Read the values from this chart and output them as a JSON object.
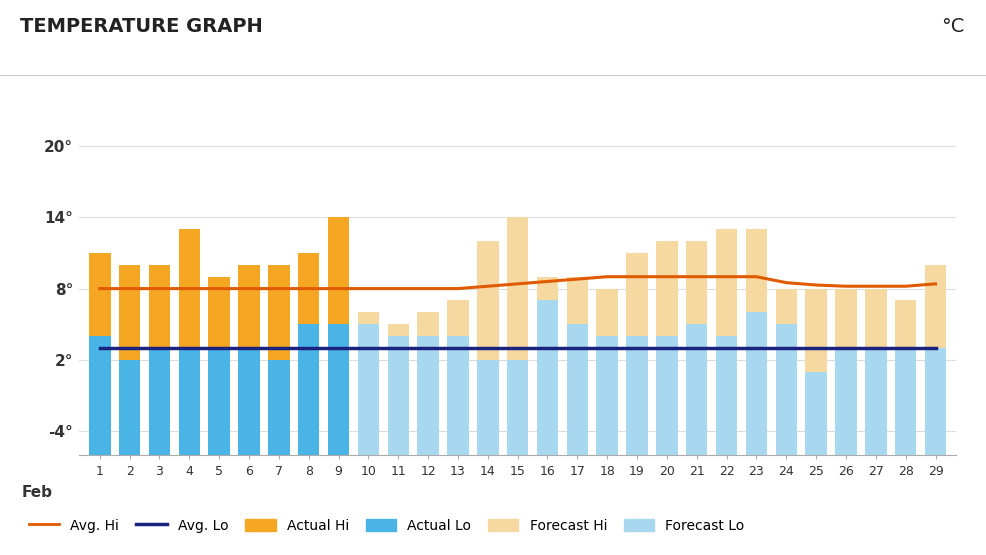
{
  "title": "TEMPERATURE GRAPH",
  "unit_label": "°C",
  "x_label": "Feb",
  "days": [
    1,
    2,
    3,
    4,
    5,
    6,
    7,
    8,
    9,
    10,
    11,
    12,
    13,
    14,
    15,
    16,
    17,
    18,
    19,
    20,
    21,
    22,
    23,
    24,
    25,
    26,
    27,
    28,
    29
  ],
  "actual_hi": [
    11,
    10,
    10,
    13,
    9,
    10,
    10,
    11,
    14,
    null,
    null,
    null,
    null,
    null,
    null,
    null,
    null,
    null,
    null,
    null,
    null,
    null,
    null,
    null,
    null,
    null,
    null,
    null,
    null
  ],
  "actual_lo": [
    4,
    2,
    3,
    3,
    3,
    3,
    2,
    5,
    5,
    null,
    null,
    null,
    null,
    null,
    null,
    null,
    null,
    null,
    null,
    null,
    null,
    null,
    null,
    null,
    null,
    null,
    null,
    null,
    null
  ],
  "forecast_hi": [
    null,
    null,
    null,
    null,
    null,
    null,
    null,
    null,
    null,
    6,
    5,
    6,
    7,
    12,
    14,
    9,
    9,
    8,
    11,
    12,
    12,
    13,
    13,
    8,
    8,
    8,
    8,
    7,
    10
  ],
  "forecast_lo": [
    null,
    null,
    null,
    null,
    null,
    null,
    null,
    null,
    null,
    5,
    4,
    4,
    4,
    2,
    2,
    7,
    5,
    4,
    4,
    4,
    5,
    4,
    6,
    5,
    1,
    3,
    3,
    3,
    3
  ],
  "avg_hi": [
    8,
    8,
    8,
    8,
    8,
    8,
    8,
    8,
    8,
    8,
    8,
    8,
    8,
    8.2,
    8.4,
    8.6,
    8.8,
    9,
    9,
    9,
    9,
    9,
    9,
    8.5,
    8.3,
    8.2,
    8.2,
    8.2,
    8.4
  ],
  "avg_lo": [
    3,
    3,
    3,
    3,
    3,
    3,
    3,
    3,
    3,
    3,
    3,
    3,
    3,
    3,
    3,
    3,
    3,
    3,
    3,
    3,
    3,
    3,
    3,
    3,
    3,
    3,
    3,
    3,
    3
  ],
  "ylim": [
    -6,
    22
  ],
  "yticks": [
    -4,
    2,
    8,
    14,
    20
  ],
  "actual_hi_color": "#f5a623",
  "actual_lo_color": "#4ab4e6",
  "forecast_hi_color": "#f5d9a0",
  "forecast_lo_color": "#a8d8f0",
  "avg_hi_color": "#e05a00",
  "avg_lo_color": "#1a237e",
  "background_color": "#ffffff",
  "grid_color": "#dddddd",
  "title_fontsize": 14,
  "axis_fontsize": 11,
  "legend_fontsize": 10
}
